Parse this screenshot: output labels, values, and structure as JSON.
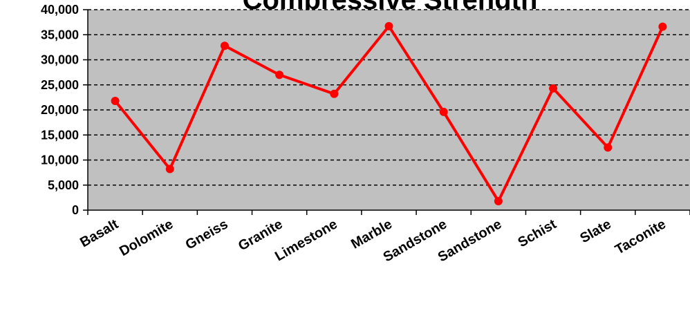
{
  "chart_data": {
    "type": "line",
    "title": "Compressive Strength",
    "categories": [
      "Basalt",
      "Dolomite",
      "Gneiss",
      "Granite",
      "Limestone",
      "Marble",
      "Sandstone",
      "Sandstone",
      "Schist",
      "Slate",
      "Taconite"
    ],
    "series": [
      {
        "values": [
          21800,
          8200,
          32800,
          27000,
          23200,
          36700,
          19600,
          1800,
          24300,
          12500,
          36600
        ]
      }
    ],
    "yticks": [
      "0",
      "5,000",
      "10,000",
      "15,000",
      "20,000",
      "25,000",
      "30,000",
      "35,000",
      "40,000"
    ],
    "ylim": [
      0,
      40000
    ],
    "ystep": 5000,
    "xlabel": "",
    "ylabel": "",
    "grid": true,
    "legend": "none",
    "colors": {
      "line": "#ff0000",
      "plot_bg": "#c0c0c0",
      "grid": "#000000"
    }
  }
}
